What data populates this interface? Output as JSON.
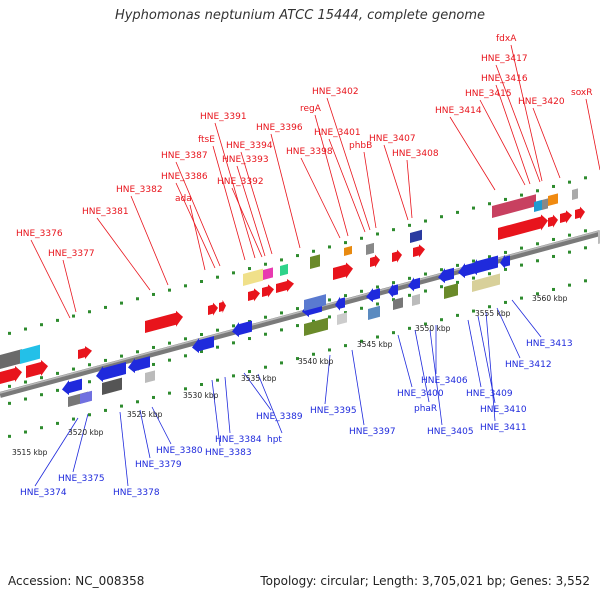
{
  "title": "Hyphomonas neptunium ATCC 15444, complete genome",
  "footer": {
    "accession": "Accession: NC_008358",
    "summary": "Topology: circular; Length: 3,705,021 bp; Genes: 3,552"
  },
  "colors": {
    "forward": "#e8141c",
    "reverse": "#1f2adc",
    "backbone": "#8c8c8c",
    "ticks": "#2e8b2e"
  },
  "scale_labels": [
    "3515 kbp",
    "3520 kbp",
    "3525 kbp",
    "3530 kbp",
    "3535 kbp",
    "3540 kbp",
    "3545 kbp",
    "3550 kbp",
    "3555 kbp",
    "3560 kbp"
  ],
  "forward_genes": [
    "HNE_3376",
    "HNE_3377",
    "HNE_3381",
    "HNE_3382",
    "ada",
    "HNE_3386",
    "HNE_3387",
    "ftsE",
    "HNE_3391",
    "HNE_3392",
    "HNE_3393",
    "HNE_3394",
    "HNE_3396",
    "HNE_3398",
    "regA",
    "HNE_3401",
    "HNE_3402",
    "phbB",
    "HNE_3407",
    "HNE_3408",
    "HNE_3414",
    "HNE_3415",
    "HNE_3416",
    "HNE_3417",
    "fdxA",
    "HNE_3420",
    "soxR"
  ],
  "reverse_genes": [
    "HNE_3374",
    "HNE_3375",
    "HNE_3378",
    "HNE_3379",
    "HNE_3380",
    "HNE_3383",
    "HNE_3384",
    "hpt",
    "HNE_3389",
    "HNE_3395",
    "HNE_3397",
    "HNE_3400",
    "phaR",
    "HNE_3405",
    "HNE_3406",
    "HNE_3409",
    "HNE_3410",
    "HNE_3411",
    "HNE_3412",
    "HNE_3413"
  ]
}
